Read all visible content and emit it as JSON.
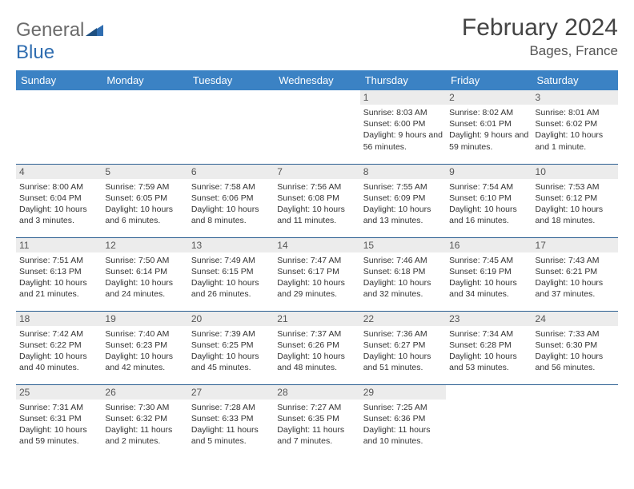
{
  "brand": {
    "text_gray": "General",
    "text_blue": "Blue"
  },
  "title": "February 2024",
  "location": "Bages, France",
  "colors": {
    "header_bg": "#3b82c4",
    "header_text": "#ffffff",
    "daynum_bg": "#ececec",
    "row_border": "#2b5f91",
    "logo_blue": "#2f6db0",
    "logo_gray": "#6b6b6b",
    "body_text": "#333333",
    "page_bg": "#ffffff"
  },
  "day_headers": [
    "Sunday",
    "Monday",
    "Tuesday",
    "Wednesday",
    "Thursday",
    "Friday",
    "Saturday"
  ],
  "weeks": [
    [
      {
        "n": "",
        "sr": "",
        "ss": "",
        "dl": ""
      },
      {
        "n": "",
        "sr": "",
        "ss": "",
        "dl": ""
      },
      {
        "n": "",
        "sr": "",
        "ss": "",
        "dl": ""
      },
      {
        "n": "",
        "sr": "",
        "ss": "",
        "dl": ""
      },
      {
        "n": "1",
        "sr": "Sunrise: 8:03 AM",
        "ss": "Sunset: 6:00 PM",
        "dl": "Daylight: 9 hours and 56 minutes."
      },
      {
        "n": "2",
        "sr": "Sunrise: 8:02 AM",
        "ss": "Sunset: 6:01 PM",
        "dl": "Daylight: 9 hours and 59 minutes."
      },
      {
        "n": "3",
        "sr": "Sunrise: 8:01 AM",
        "ss": "Sunset: 6:02 PM",
        "dl": "Daylight: 10 hours and 1 minute."
      }
    ],
    [
      {
        "n": "4",
        "sr": "Sunrise: 8:00 AM",
        "ss": "Sunset: 6:04 PM",
        "dl": "Daylight: 10 hours and 3 minutes."
      },
      {
        "n": "5",
        "sr": "Sunrise: 7:59 AM",
        "ss": "Sunset: 6:05 PM",
        "dl": "Daylight: 10 hours and 6 minutes."
      },
      {
        "n": "6",
        "sr": "Sunrise: 7:58 AM",
        "ss": "Sunset: 6:06 PM",
        "dl": "Daylight: 10 hours and 8 minutes."
      },
      {
        "n": "7",
        "sr": "Sunrise: 7:56 AM",
        "ss": "Sunset: 6:08 PM",
        "dl": "Daylight: 10 hours and 11 minutes."
      },
      {
        "n": "8",
        "sr": "Sunrise: 7:55 AM",
        "ss": "Sunset: 6:09 PM",
        "dl": "Daylight: 10 hours and 13 minutes."
      },
      {
        "n": "9",
        "sr": "Sunrise: 7:54 AM",
        "ss": "Sunset: 6:10 PM",
        "dl": "Daylight: 10 hours and 16 minutes."
      },
      {
        "n": "10",
        "sr": "Sunrise: 7:53 AM",
        "ss": "Sunset: 6:12 PM",
        "dl": "Daylight: 10 hours and 18 minutes."
      }
    ],
    [
      {
        "n": "11",
        "sr": "Sunrise: 7:51 AM",
        "ss": "Sunset: 6:13 PM",
        "dl": "Daylight: 10 hours and 21 minutes."
      },
      {
        "n": "12",
        "sr": "Sunrise: 7:50 AM",
        "ss": "Sunset: 6:14 PM",
        "dl": "Daylight: 10 hours and 24 minutes."
      },
      {
        "n": "13",
        "sr": "Sunrise: 7:49 AM",
        "ss": "Sunset: 6:15 PM",
        "dl": "Daylight: 10 hours and 26 minutes."
      },
      {
        "n": "14",
        "sr": "Sunrise: 7:47 AM",
        "ss": "Sunset: 6:17 PM",
        "dl": "Daylight: 10 hours and 29 minutes."
      },
      {
        "n": "15",
        "sr": "Sunrise: 7:46 AM",
        "ss": "Sunset: 6:18 PM",
        "dl": "Daylight: 10 hours and 32 minutes."
      },
      {
        "n": "16",
        "sr": "Sunrise: 7:45 AM",
        "ss": "Sunset: 6:19 PM",
        "dl": "Daylight: 10 hours and 34 minutes."
      },
      {
        "n": "17",
        "sr": "Sunrise: 7:43 AM",
        "ss": "Sunset: 6:21 PM",
        "dl": "Daylight: 10 hours and 37 minutes."
      }
    ],
    [
      {
        "n": "18",
        "sr": "Sunrise: 7:42 AM",
        "ss": "Sunset: 6:22 PM",
        "dl": "Daylight: 10 hours and 40 minutes."
      },
      {
        "n": "19",
        "sr": "Sunrise: 7:40 AM",
        "ss": "Sunset: 6:23 PM",
        "dl": "Daylight: 10 hours and 42 minutes."
      },
      {
        "n": "20",
        "sr": "Sunrise: 7:39 AM",
        "ss": "Sunset: 6:25 PM",
        "dl": "Daylight: 10 hours and 45 minutes."
      },
      {
        "n": "21",
        "sr": "Sunrise: 7:37 AM",
        "ss": "Sunset: 6:26 PM",
        "dl": "Daylight: 10 hours and 48 minutes."
      },
      {
        "n": "22",
        "sr": "Sunrise: 7:36 AM",
        "ss": "Sunset: 6:27 PM",
        "dl": "Daylight: 10 hours and 51 minutes."
      },
      {
        "n": "23",
        "sr": "Sunrise: 7:34 AM",
        "ss": "Sunset: 6:28 PM",
        "dl": "Daylight: 10 hours and 53 minutes."
      },
      {
        "n": "24",
        "sr": "Sunrise: 7:33 AM",
        "ss": "Sunset: 6:30 PM",
        "dl": "Daylight: 10 hours and 56 minutes."
      }
    ],
    [
      {
        "n": "25",
        "sr": "Sunrise: 7:31 AM",
        "ss": "Sunset: 6:31 PM",
        "dl": "Daylight: 10 hours and 59 minutes."
      },
      {
        "n": "26",
        "sr": "Sunrise: 7:30 AM",
        "ss": "Sunset: 6:32 PM",
        "dl": "Daylight: 11 hours and 2 minutes."
      },
      {
        "n": "27",
        "sr": "Sunrise: 7:28 AM",
        "ss": "Sunset: 6:33 PM",
        "dl": "Daylight: 11 hours and 5 minutes."
      },
      {
        "n": "28",
        "sr": "Sunrise: 7:27 AM",
        "ss": "Sunset: 6:35 PM",
        "dl": "Daylight: 11 hours and 7 minutes."
      },
      {
        "n": "29",
        "sr": "Sunrise: 7:25 AM",
        "ss": "Sunset: 6:36 PM",
        "dl": "Daylight: 11 hours and 10 minutes."
      },
      {
        "n": "",
        "sr": "",
        "ss": "",
        "dl": ""
      },
      {
        "n": "",
        "sr": "",
        "ss": "",
        "dl": ""
      }
    ]
  ]
}
